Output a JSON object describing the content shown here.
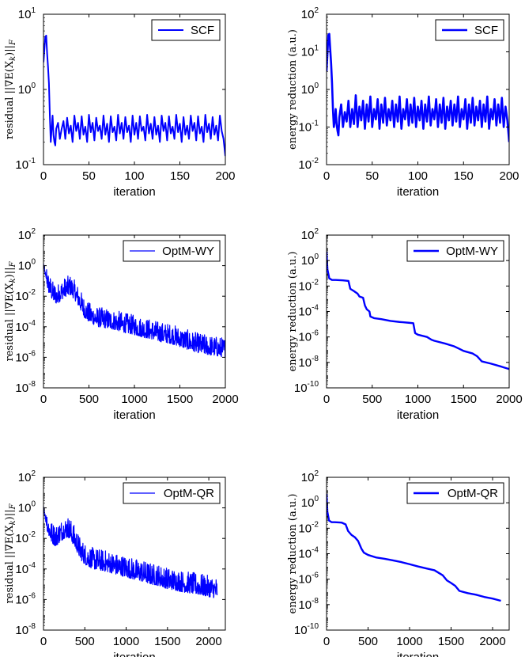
{
  "figure_title": "",
  "chart_data": [
    {
      "id": "p1",
      "type": "line",
      "title": "",
      "xlabel": "iteration",
      "ylabel": "residual ||∇E(X_k)||_F",
      "ylabel_main": "residual ||∇E(X",
      "ylabel_sub": "k",
      "ylabel_tail": ")||",
      "ylabel_sub2": "F",
      "yscale": "log",
      "xlim": [
        0,
        200
      ],
      "ylim_exp": [
        -1,
        1
      ],
      "xticks": [
        "0",
        "50",
        "100",
        "150",
        "200"
      ],
      "yticks_exp": [
        "-1",
        "0",
        "1"
      ],
      "legend": "SCF",
      "legend_location": "top-right",
      "line_width": 2,
      "series": [
        {
          "name": "SCF",
          "color": "#0000ff",
          "x": [
            0,
            2,
            3,
            4,
            5,
            6,
            7,
            8,
            9,
            10,
            11,
            12,
            13,
            14,
            16,
            18,
            20,
            22,
            24,
            26,
            28,
            30,
            32,
            34,
            36,
            38,
            40,
            42,
            44,
            46,
            48,
            50,
            52,
            54,
            56,
            58,
            60,
            62,
            64,
            66,
            68,
            70,
            72,
            74,
            76,
            78,
            80,
            82,
            84,
            86,
            88,
            90,
            92,
            94,
            96,
            98,
            100,
            102,
            104,
            106,
            108,
            110,
            112,
            114,
            116,
            118,
            120,
            122,
            124,
            126,
            128,
            130,
            132,
            134,
            136,
            138,
            140,
            142,
            144,
            146,
            148,
            150,
            152,
            154,
            156,
            158,
            160,
            162,
            164,
            166,
            168,
            170,
            172,
            174,
            176,
            178,
            180,
            182,
            184,
            186,
            188,
            190,
            192,
            194,
            196,
            198,
            200
          ],
          "y": [
            2.3,
            5.0,
            5.2,
            3.0,
            2.0,
            1.2,
            0.45,
            0.2,
            0.3,
            0.45,
            0.25,
            0.2,
            0.18,
            0.3,
            0.36,
            0.22,
            0.3,
            0.38,
            0.22,
            0.42,
            0.26,
            0.33,
            0.2,
            0.45,
            0.28,
            0.36,
            0.22,
            0.44,
            0.25,
            0.32,
            0.2,
            0.46,
            0.27,
            0.36,
            0.21,
            0.42,
            0.28,
            0.33,
            0.22,
            0.45,
            0.25,
            0.35,
            0.2,
            0.44,
            0.27,
            0.32,
            0.21,
            0.46,
            0.26,
            0.36,
            0.22,
            0.43,
            0.27,
            0.33,
            0.2,
            0.45,
            0.25,
            0.36,
            0.22,
            0.44,
            0.28,
            0.32,
            0.21,
            0.46,
            0.26,
            0.35,
            0.22,
            0.43,
            0.25,
            0.33,
            0.2,
            0.45,
            0.28,
            0.36,
            0.21,
            0.44,
            0.26,
            0.32,
            0.22,
            0.46,
            0.27,
            0.35,
            0.2,
            0.43,
            0.25,
            0.33,
            0.22,
            0.45,
            0.28,
            0.36,
            0.21,
            0.44,
            0.26,
            0.32,
            0.2,
            0.46,
            0.27,
            0.35,
            0.22,
            0.43,
            0.25,
            0.33,
            0.21,
            0.45,
            0.28,
            0.22,
            0.13
          ]
        }
      ]
    },
    {
      "id": "p2",
      "type": "line",
      "title": "",
      "xlabel": "iteration",
      "ylabel": "energy reduction (a.u.)",
      "yscale": "log",
      "xlim": [
        0,
        200
      ],
      "ylim_exp": [
        -2,
        2
      ],
      "xticks": [
        "0",
        "50",
        "100",
        "150",
        "200"
      ],
      "yticks_exp": [
        "-2",
        "-1",
        "0",
        "1",
        "2"
      ],
      "legend": "SCF",
      "legend_location": "top-right",
      "line_width": 2.6,
      "series": [
        {
          "name": "SCF",
          "color": "#0000ff",
          "x": [
            0,
            2,
            3,
            4,
            5,
            6,
            7,
            8,
            9,
            10,
            11,
            12,
            13,
            14,
            16,
            18,
            20,
            22,
            24,
            26,
            28,
            30,
            32,
            34,
            36,
            38,
            40,
            42,
            44,
            46,
            48,
            50,
            52,
            54,
            56,
            58,
            60,
            62,
            64,
            66,
            68,
            70,
            72,
            74,
            76,
            78,
            80,
            82,
            84,
            86,
            88,
            90,
            92,
            94,
            96,
            98,
            100,
            102,
            104,
            106,
            108,
            110,
            112,
            114,
            116,
            118,
            120,
            122,
            124,
            126,
            128,
            130,
            132,
            134,
            136,
            138,
            140,
            142,
            144,
            146,
            148,
            150,
            152,
            154,
            156,
            158,
            160,
            162,
            164,
            166,
            168,
            170,
            172,
            174,
            176,
            178,
            180,
            182,
            184,
            186,
            188,
            190,
            192,
            194,
            196,
            198,
            200
          ],
          "y": [
            3.0,
            28,
            30,
            12,
            5,
            1.5,
            0.3,
            0.1,
            0.15,
            0.3,
            0.12,
            0.08,
            0.06,
            0.18,
            0.4,
            0.1,
            0.25,
            0.14,
            0.5,
            0.1,
            0.3,
            0.12,
            0.7,
            0.1,
            0.35,
            0.15,
            0.5,
            0.09,
            0.4,
            0.14,
            0.65,
            0.1,
            0.3,
            0.16,
            0.55,
            0.09,
            0.4,
            0.13,
            0.6,
            0.11,
            0.3,
            0.15,
            0.5,
            0.1,
            0.4,
            0.14,
            0.65,
            0.09,
            0.3,
            0.16,
            0.55,
            0.11,
            0.4,
            0.13,
            0.6,
            0.1,
            0.35,
            0.15,
            0.5,
            0.09,
            0.4,
            0.14,
            0.65,
            0.11,
            0.3,
            0.16,
            0.55,
            0.1,
            0.4,
            0.13,
            0.6,
            0.09,
            0.35,
            0.15,
            0.5,
            0.11,
            0.4,
            0.14,
            0.65,
            0.1,
            0.3,
            0.16,
            0.55,
            0.09,
            0.4,
            0.13,
            0.6,
            0.11,
            0.35,
            0.15,
            0.5,
            0.1,
            0.4,
            0.14,
            0.65,
            0.09,
            0.3,
            0.16,
            0.55,
            0.11,
            0.4,
            0.13,
            0.6,
            0.1,
            0.35,
            0.15,
            0.04
          ]
        }
      ]
    },
    {
      "id": "p3",
      "type": "line",
      "title": "",
      "xlabel": "iteration",
      "ylabel": "residual ||∇E(X_k)||_F",
      "ylabel_main": "residual ||∇E(X",
      "ylabel_sub": "k",
      "ylabel_tail": ")||",
      "ylabel_sub2": "F",
      "yscale": "log",
      "xlim": [
        0,
        2000
      ],
      "ylim_exp": [
        -8,
        2
      ],
      "xticks": [
        "0",
        "500",
        "1000",
        "1500",
        "2000"
      ],
      "yticks_exp": [
        "-8",
        "-6",
        "-4",
        "-2",
        "0",
        "2"
      ],
      "legend": "OptM-WY",
      "legend_location": "top-right",
      "line_width": 1.2,
      "series": [
        {
          "name": "OptM-WY",
          "color": "#0000ff",
          "noise_band_decades": 1.3,
          "x_lower_envelope": [
            0,
            50,
            100,
            150,
            200,
            250,
            300,
            350,
            400,
            450,
            500,
            600,
            700,
            800,
            900,
            1000,
            1100,
            1200,
            1300,
            1400,
            1500,
            1600,
            1700,
            1800,
            1900,
            2000
          ],
          "y_lower_envelope": [
            1.0,
            0.02,
            0.005,
            0.003,
            0.006,
            0.01,
            0.012,
            0.005,
            0.0015,
            0.0004,
            0.0002,
            0.0001,
            8e-05,
            6e-05,
            4e-05,
            3e-05,
            2e-05,
            1.5e-05,
            1e-05,
            8e-06,
            5e-06,
            3e-06,
            2e-06,
            1.5e-06,
            1.2e-06,
            1e-06
          ]
        }
      ]
    },
    {
      "id": "p4",
      "type": "line",
      "title": "",
      "xlabel": "iteration",
      "ylabel": "energy reduction (a.u.)",
      "yscale": "log",
      "xlim": [
        0,
        2000
      ],
      "ylim_exp": [
        -10,
        2
      ],
      "xticks": [
        "0",
        "500",
        "1000",
        "1500",
        "2000"
      ],
      "yticks_exp": [
        "-10",
        "-8",
        "-6",
        "-4",
        "-2",
        "0",
        "2"
      ],
      "legend": "OptM-WY",
      "legend_location": "top-right",
      "line_width": 2.4,
      "series": [
        {
          "name": "OptM-WY",
          "color": "#0000ff",
          "x": [
            0,
            10,
            30,
            60,
            100,
            180,
            240,
            260,
            300,
            340,
            360,
            400,
            420,
            440,
            470,
            480,
            520,
            600,
            700,
            800,
            900,
            950,
            970,
            1000,
            1100,
            1150,
            1180,
            1300,
            1400,
            1450,
            1500,
            1600,
            1650,
            1700,
            1800,
            1900,
            2000
          ],
          "y": [
            5.0,
            0.2,
            0.04,
            0.03,
            0.03,
            0.028,
            0.025,
            0.006,
            0.004,
            0.0025,
            0.0015,
            0.0012,
            0.0003,
            0.00015,
            0.0001,
            4e-05,
            3e-05,
            2.5e-05,
            1.8e-05,
            1.5e-05,
            1.3e-05,
            1.2e-05,
            2e-06,
            1.5e-06,
            1e-06,
            6e-07,
            5e-07,
            3e-07,
            1.8e-07,
            1.2e-07,
            8e-08,
            5e-08,
            3e-08,
            1.2e-08,
            8e-09,
            5e-09,
            3e-09
          ]
        }
      ]
    },
    {
      "id": "p5",
      "type": "line",
      "title": "",
      "xlabel": "iteration",
      "ylabel": "residual ||∇E(X_k)||_F",
      "ylabel_main": "residual ||∇E(X",
      "ylabel_sub": "k",
      "ylabel_tail": ")||",
      "ylabel_sub2": "F",
      "yscale": "log",
      "xlim": [
        0,
        2200
      ],
      "ylim_exp": [
        -8,
        2
      ],
      "xticks": [
        "0",
        "500",
        "1000",
        "1500",
        "2000"
      ],
      "yticks_exp": [
        "-8",
        "-6",
        "-4",
        "-2",
        "0",
        "2"
      ],
      "legend": "OptM-QR",
      "legend_location": "top-right",
      "line_width": 1.2,
      "series": [
        {
          "name": "OptM-QR",
          "color": "#0000ff",
          "noise_band_decades": 1.4,
          "x_lower_envelope": [
            0,
            50,
            100,
            150,
            200,
            250,
            300,
            350,
            400,
            450,
            500,
            600,
            700,
            800,
            900,
            1000,
            1100,
            1200,
            1300,
            1400,
            1500,
            1600,
            1700,
            1800,
            1900,
            2000,
            2100
          ],
          "y_lower_envelope": [
            1.0,
            0.02,
            0.005,
            0.003,
            0.006,
            0.01,
            0.012,
            0.005,
            0.0015,
            0.0004,
            0.0002,
            0.0001,
            8e-05,
            6e-05,
            4e-05,
            3e-05,
            2e-05,
            1.5e-05,
            1e-05,
            8e-06,
            5e-06,
            4e-06,
            3e-06,
            2.5e-06,
            2e-06,
            1.5e-06,
            1.2e-06
          ]
        }
      ]
    },
    {
      "id": "p6",
      "type": "line",
      "title": "",
      "xlabel": "iteration",
      "ylabel": "energy reduction (a.u.)",
      "yscale": "log",
      "xlim": [
        0,
        2200
      ],
      "ylim_exp": [
        -10,
        2
      ],
      "xticks": [
        "0",
        "500",
        "1000",
        "1500",
        "2000"
      ],
      "yticks_exp": [
        "-10",
        "-8",
        "-6",
        "-4",
        "-2",
        "0",
        "2"
      ],
      "legend": "OptM-QR",
      "legend_location": "top-right",
      "line_width": 2.4,
      "series": [
        {
          "name": "OptM-QR",
          "color": "#0000ff",
          "x": [
            0,
            10,
            30,
            60,
            100,
            180,
            230,
            260,
            300,
            340,
            380,
            400,
            420,
            450,
            500,
            600,
            700,
            800,
            900,
            1000,
            1100,
            1200,
            1300,
            1400,
            1450,
            1500,
            1550,
            1600,
            1700,
            1800,
            1900,
            2000,
            2100
          ],
          "y": [
            5.0,
            0.2,
            0.04,
            0.03,
            0.03,
            0.028,
            0.02,
            0.006,
            0.003,
            0.002,
            0.001,
            0.0005,
            0.00025,
            0.00012,
            8e-05,
            5e-05,
            4e-05,
            3e-05,
            2.2e-05,
            1.5e-05,
            1e-05,
            7e-06,
            5e-06,
            2e-06,
            8e-07,
            5e-07,
            3e-07,
            1.2e-07,
            8e-08,
            6e-08,
            4e-08,
            3e-08,
            2e-08
          ]
        }
      ]
    }
  ]
}
